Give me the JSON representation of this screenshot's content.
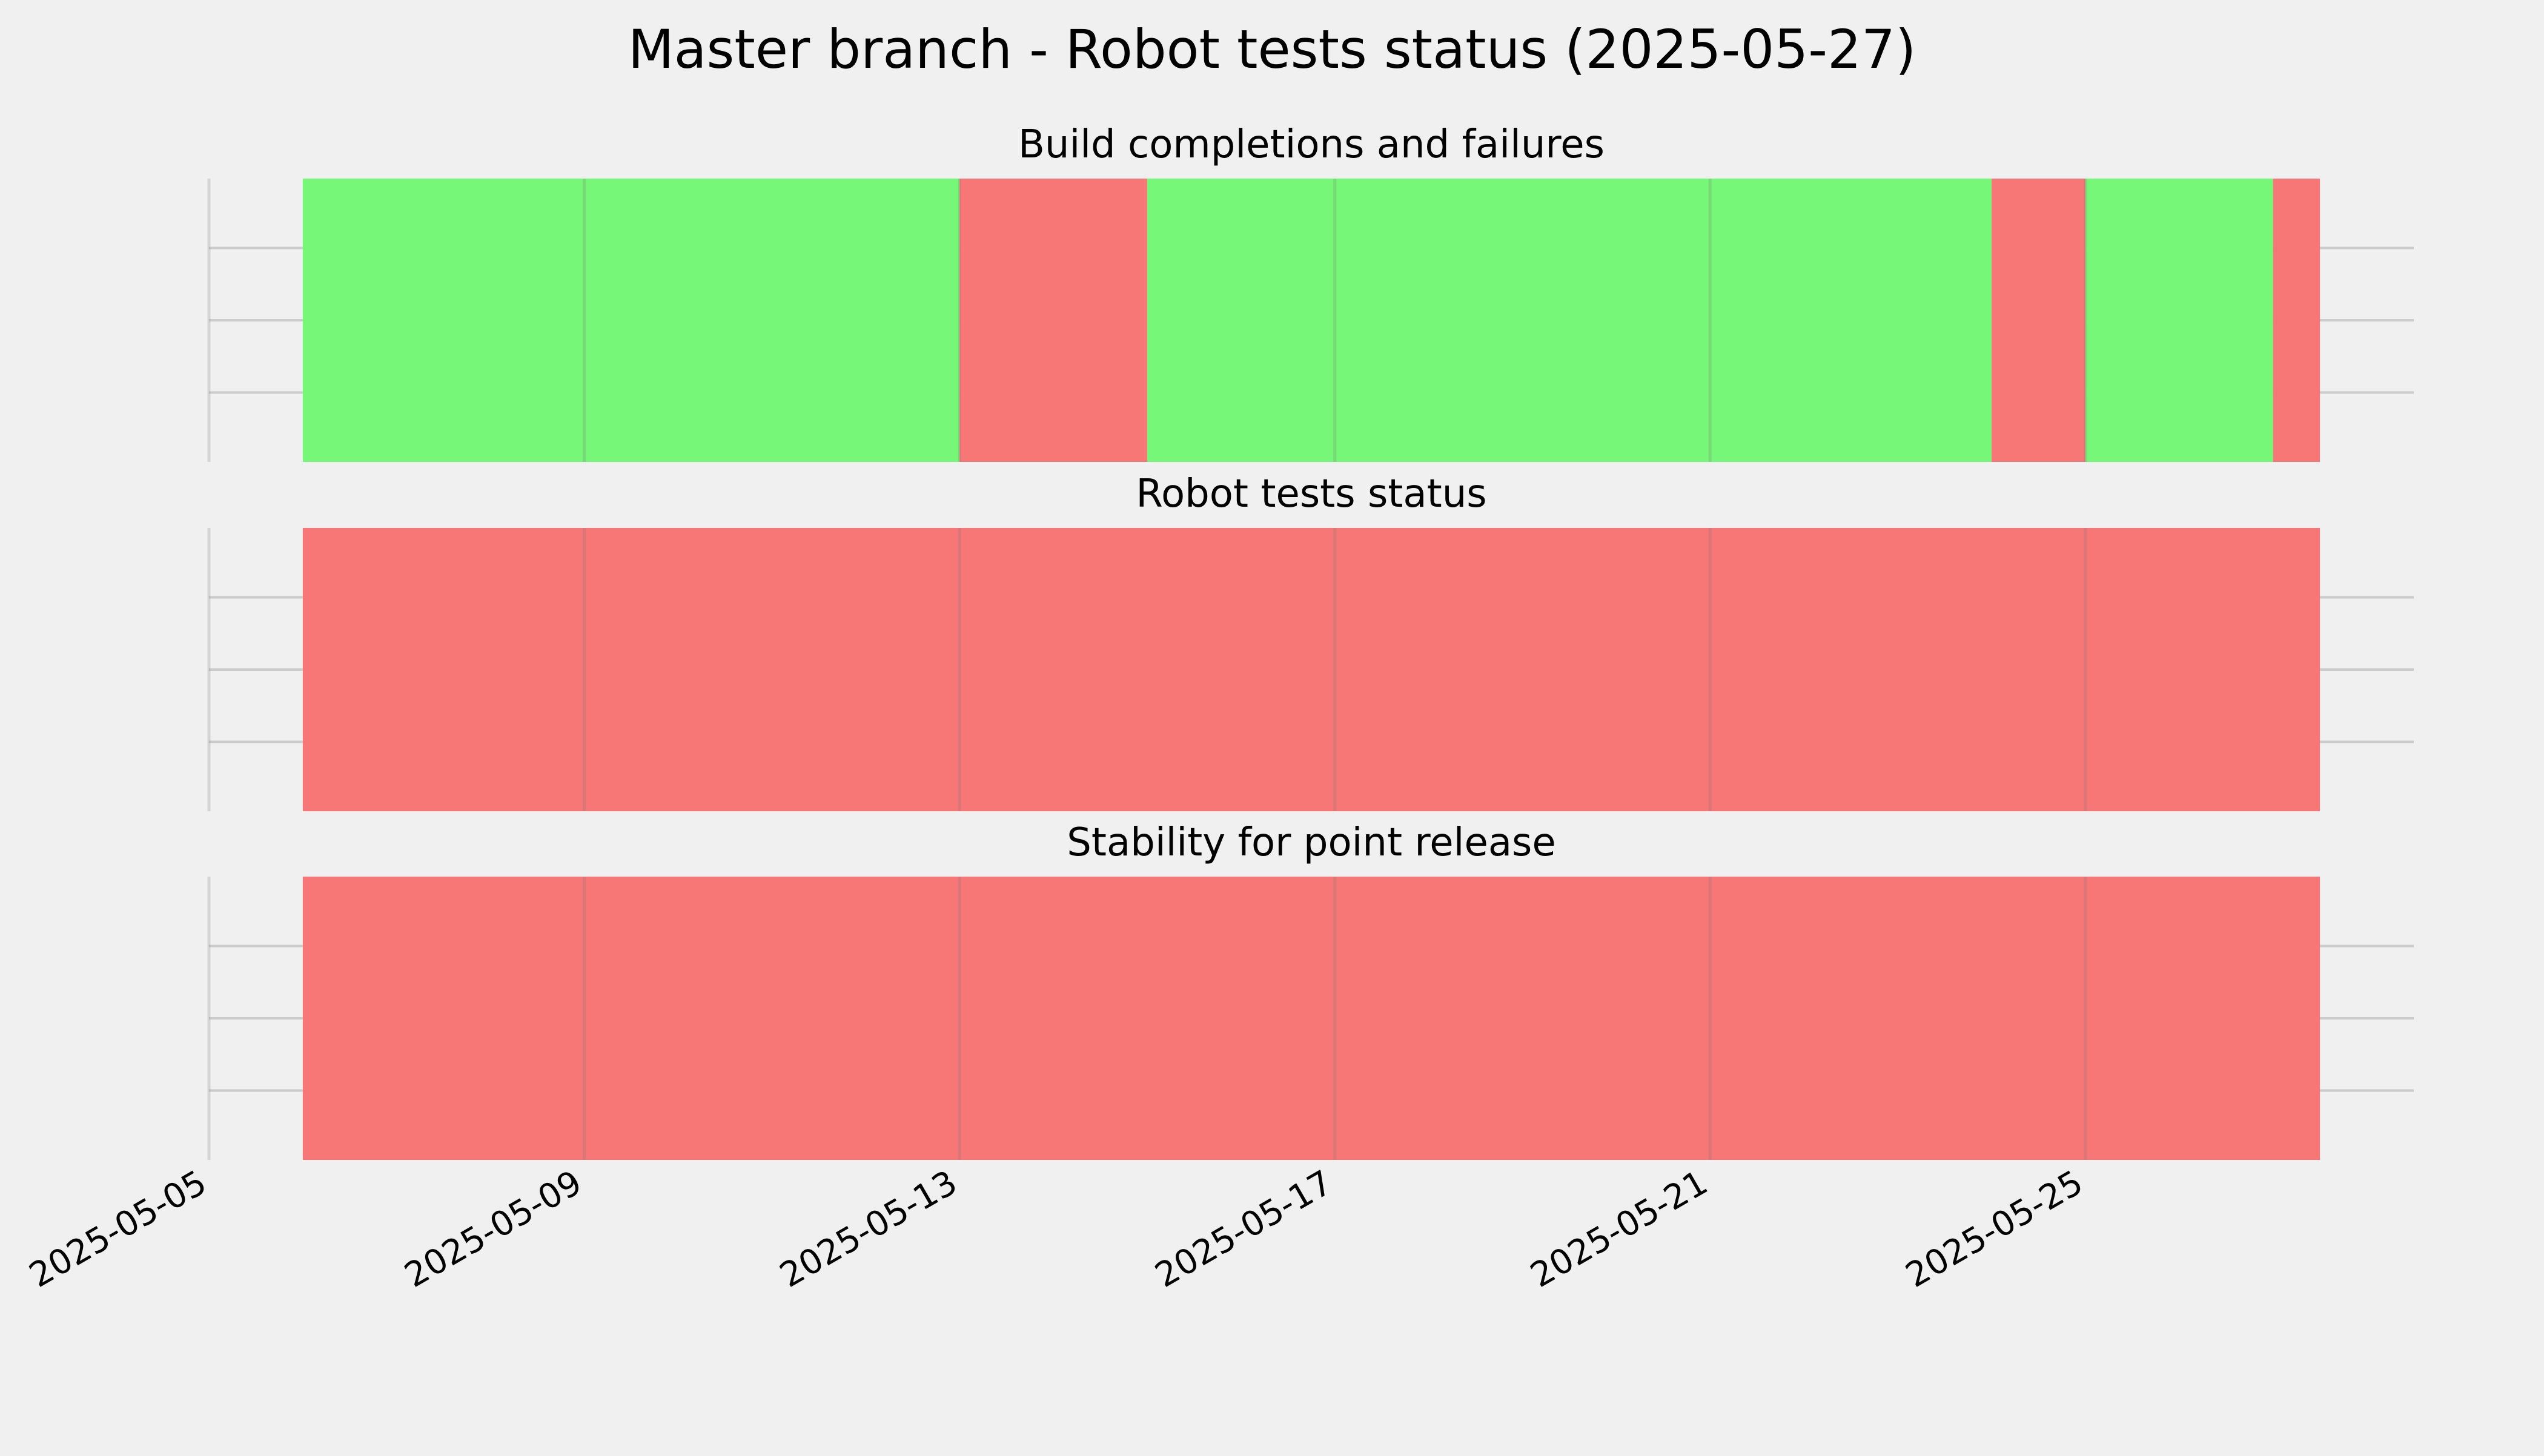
{
  "chart_data": {
    "type": "bar",
    "title": "Master branch - Robot tests status (2025-05-27)",
    "x_type": "date",
    "xlim": [
      "2025-05-05",
      "2025-05-28T12:00"
    ],
    "x_ticks": [
      "2025-05-05",
      "2025-05-09",
      "2025-05-13",
      "2025-05-17",
      "2025-05-21",
      "2025-05-25"
    ],
    "grid": true,
    "colors": {
      "pass": "#77f777",
      "fail": "#f77777",
      "background": "#f0f0f0",
      "grid": "#cbcbcb"
    },
    "panels": [
      {
        "title": "Build completions and failures",
        "segments": [
          {
            "start": "2025-05-06",
            "end": "2025-05-13",
            "status": "pass"
          },
          {
            "start": "2025-05-13",
            "end": "2025-05-15",
            "status": "fail"
          },
          {
            "start": "2025-05-15",
            "end": "2025-05-24",
            "status": "pass"
          },
          {
            "start": "2025-05-24",
            "end": "2025-05-25",
            "status": "fail"
          },
          {
            "start": "2025-05-25",
            "end": "2025-05-27",
            "status": "pass"
          },
          {
            "start": "2025-05-27",
            "end": "2025-05-27T12:00",
            "status": "fail"
          }
        ]
      },
      {
        "title": "Robot tests status",
        "segments": [
          {
            "start": "2025-05-06",
            "end": "2025-05-27T12:00",
            "status": "fail"
          }
        ]
      },
      {
        "title": "Stability for point release",
        "segments": [
          {
            "start": "2025-05-06",
            "end": "2025-05-27T12:00",
            "status": "fail"
          }
        ]
      }
    ]
  }
}
